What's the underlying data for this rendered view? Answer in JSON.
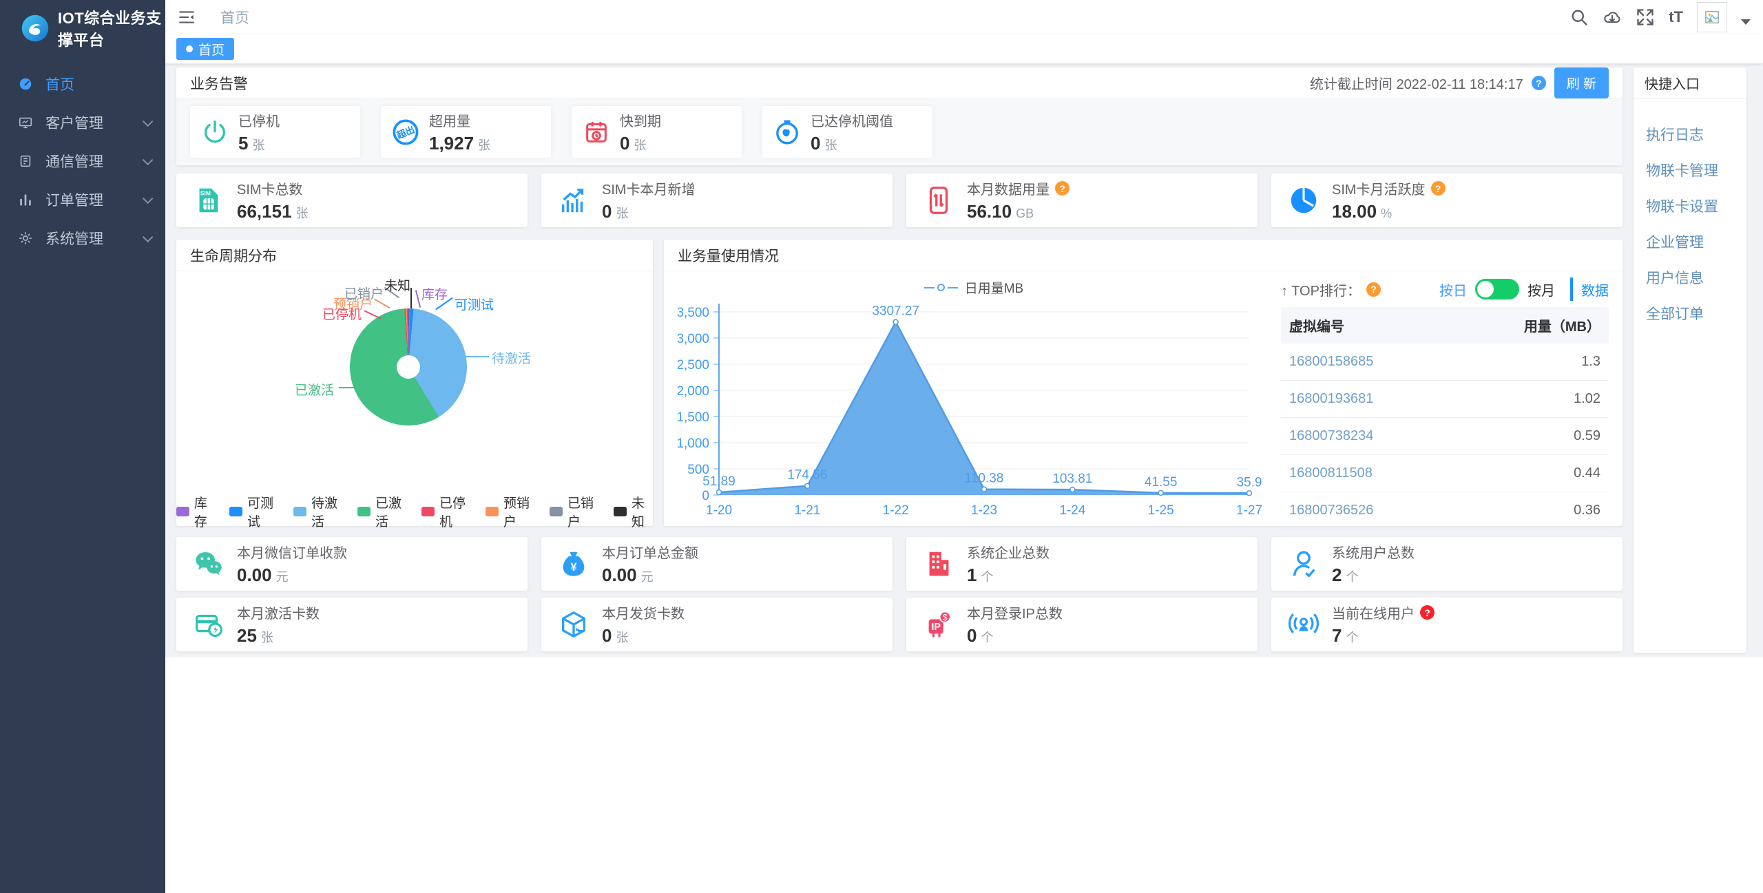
{
  "app": {
    "title": "IOT综合业务支撑平台"
  },
  "sidebar": {
    "items": [
      {
        "label": "首页"
      },
      {
        "label": "客户管理"
      },
      {
        "label": "通信管理"
      },
      {
        "label": "订单管理"
      },
      {
        "label": "系统管理"
      }
    ]
  },
  "navbar": {
    "breadcrumb": "首页",
    "font_size_icon": "tT"
  },
  "tagbar": {
    "active_tag": "首页"
  },
  "misc": {
    "q": "?"
  },
  "alert_panel": {
    "title": "业务告警",
    "stats_time": "统计截止时间 2022-02-11 18:14:17",
    "refresh_label": "刷 新",
    "cards": [
      {
        "label": "已停机",
        "value": "5",
        "unit": "张"
      },
      {
        "label": "超用量",
        "value": "1,927",
        "unit": "张"
      },
      {
        "label": "快到期",
        "value": "0",
        "unit": "张"
      },
      {
        "label": "已达停机阈值",
        "value": "0",
        "unit": "张"
      }
    ]
  },
  "sim_stats": [
    {
      "label": "SIM卡总数",
      "value": "66,151",
      "unit": "张"
    },
    {
      "label": "SIM卡本月新增",
      "value": "0",
      "unit": "张"
    },
    {
      "label": "本月数据用量",
      "value": "56.10",
      "unit": "GB"
    },
    {
      "label": "SIM卡月活跃度",
      "value": "18.00",
      "unit": "%"
    }
  ],
  "lifecycle_panel": {
    "title": "生命周期分布"
  },
  "usage_panel": {
    "title": "业务量使用情况"
  },
  "top_panel": {
    "title": "↑ TOP排行：",
    "toggle_left": "按日",
    "toggle_right": "按月",
    "tab": "数据",
    "table": {
      "headers": [
        "虚拟编号",
        "用量（MB）"
      ],
      "rows": [
        [
          "16800158685",
          "1.3"
        ],
        [
          "16800193681",
          "1.02"
        ],
        [
          "16800738234",
          "0.59"
        ],
        [
          "16800811508",
          "0.44"
        ],
        [
          "16800736526",
          "0.36"
        ]
      ]
    }
  },
  "bottom_stats": [
    {
      "label": "本月微信订单收款",
      "value": "0.00",
      "unit": "元"
    },
    {
      "label": "本月订单总金额",
      "value": "0.00",
      "unit": "元"
    },
    {
      "label": "系统企业总数",
      "value": "1",
      "unit": "个"
    },
    {
      "label": "系统用户总数",
      "value": "2",
      "unit": "个"
    },
    {
      "label": "本月激活卡数",
      "value": "25",
      "unit": "张"
    },
    {
      "label": "本月发货卡数",
      "value": "0",
      "unit": "张"
    },
    {
      "label": "本月登录IP总数",
      "value": "0",
      "unit": "个"
    },
    {
      "label": "当前在线用户",
      "value": "7",
      "unit": "个"
    }
  ],
  "quick_panel": {
    "title": "快捷入口",
    "links": [
      "执行日志",
      "物联卡管理",
      "物联卡设置",
      "企业管理",
      "用户信息",
      "全部订单"
    ]
  },
  "chart_data": [
    {
      "type": "pie",
      "title": "生命周期分布",
      "legend_position": "bottom",
      "slices": [
        {
          "name": "库存",
          "percent": 0.5,
          "color": "#9c6ad6"
        },
        {
          "name": "可测试",
          "percent": 0.9,
          "color": "#1890ff"
        },
        {
          "name": "待激活",
          "percent": 39.9,
          "color": "#6cb8ef"
        },
        {
          "name": "已激活",
          "percent": 57.6,
          "color": "#41c184"
        },
        {
          "name": "已停机",
          "percent": 0.4,
          "color": "#ef4864"
        },
        {
          "name": "预销户",
          "percent": 0.3,
          "color": "#f9925f"
        },
        {
          "name": "已销户",
          "percent": 0.2,
          "color": "#8492a6"
        },
        {
          "name": "未知",
          "percent": 0.2,
          "color": "#2f2f2f"
        }
      ]
    },
    {
      "type": "area",
      "title": "业务量使用情况",
      "legend": "日用量MB",
      "legend_position": "top",
      "x": [
        "1-20",
        "1-21",
        "1-22",
        "1-23",
        "1-24",
        "1-25",
        "1-27"
      ],
      "values": [
        51.89,
        174.56,
        3307.27,
        110.38,
        103.81,
        41.55,
        35.9
      ],
      "ylim": [
        0,
        3500
      ],
      "yticks": [
        "0",
        "500",
        "1,000",
        "1,500",
        "2,000",
        "2,500",
        "3,000",
        "3,500"
      ],
      "grid": true,
      "line_color": "#4f9ce6",
      "fill_color": "#5ea7ea"
    }
  ]
}
